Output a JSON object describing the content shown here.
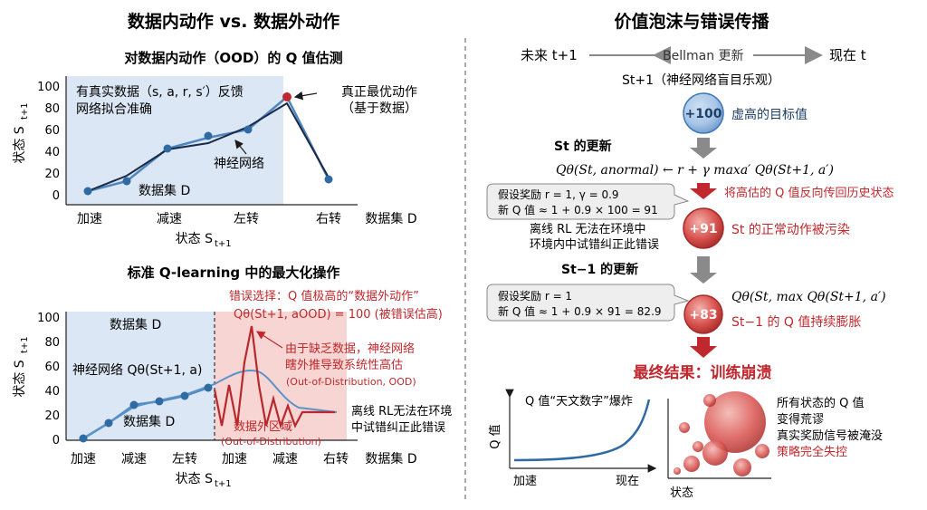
{
  "left": {
    "title": "数据内动作 vs. 数据外动作",
    "top": {
      "title": "对数据内动作（OOD）的 Q 值估测",
      "feedback_line1": "有真实数据（s, a, r, s′）反馈",
      "feedback_line2": "网络拟合准确",
      "best_action_line1": "真正最优动作",
      "best_action_line2": "（基于数据）",
      "nn_label": "神经网络",
      "dataset_label": "数据集 D",
      "yticks": [
        "100",
        "80",
        "60",
        "40",
        "20",
        "0"
      ],
      "xticks": [
        "加速",
        "减速",
        "左转",
        "右转"
      ],
      "ylabel": "状态 S",
      "ylabel_sub": "t+1",
      "xlabel": "状态 S",
      "xlabel_sub": "t+1",
      "xaxis_right": "数据集 D"
    },
    "bottom": {
      "title": "标准 Q-learning 中的最大化操作",
      "error_line1": "错误选择：Q 值极高的“数据外动作”",
      "error_line2": "Qθ(St+1, aOOD) = 100 (被错误估高)",
      "extrap_line1": "由于缺乏数据，神经网络",
      "extrap_line2": "瞎外推导致系统性高估",
      "extrap_line3": "(Out-of-Distribution, OOD)",
      "dataset_top": "数据集 D",
      "nn_label": "神经网络 Qθ(St+1, a)",
      "dataset_bottom": "数据集 D",
      "ood_region_line1": "数据外区域",
      "ood_region_line2": "(Out-of-Distribution)",
      "offline_line1": "离线 RL无法在环境",
      "offline_line2": "中试错纠正此错误",
      "yticks": [
        "100",
        "80",
        "60",
        "40",
        "20",
        "0"
      ],
      "xticks": [
        "加速",
        "减速",
        "左转",
        "加速",
        "减速",
        "右转"
      ],
      "ylabel": "状态 S",
      "ylabel_sub": "t+1",
      "xlabel": "状态 S",
      "xlabel_sub": "t+1",
      "xaxis_right": "数据集 D"
    }
  },
  "right": {
    "title": "价值泡沫与错误传播",
    "future": "未来 t+1",
    "bellman": "Bellman 更新",
    "now": "现在 t",
    "s_next": "St+1（神经网络盲目乐观）",
    "bubble1": "+100",
    "bubble1_note": "虚高的目标值",
    "st_update": "St 的更新",
    "formula1": "Qθ(St, anormal) ← r + γ maxa′ Qθ(St+1, a′)",
    "box1_line1": "假设奖励 r = 1, γ = 0.9",
    "box1_line2": "新 Q 值 ≈ 1 + 0.9 × 100 = 91",
    "backprop_note": "将高估的 Q 值反向传回历史状态",
    "offline_line1": "离线 RL 无法在环境中",
    "offline_line2": "环境内中试错纠正此错误",
    "bubble2": "+91",
    "bubble2_note": "St 的正常动作被污染",
    "st1_update": "St−1 的更新",
    "box2_line1": "假设奖励 r = 1",
    "box2_line2": "新 Q 值 ≈ 1 + 0.9 × 91 = 82.9",
    "formula2": "Qθ(St, max Qθ(St+1, a′)",
    "bubble3": "+83",
    "bubble3_note": "St−1 的 Q 值持续膨胀",
    "final": "最终结果：训练崩溃",
    "explode_title": "Q 值“天文数字”爆炸",
    "explode_ylabel": "Q 值",
    "explode_x_left": "加速",
    "explode_x_right": "现在",
    "state_label": "状态",
    "conclusion_line1": "所有状态的 Q 值",
    "conclusion_line2": "变得荒谬",
    "conclusion_line3": "真实奖励信号被淹没",
    "conclusion_line4": "策略完全失控"
  },
  "colors": {
    "in_data_bg": "#dbe7f4",
    "ood_bg": "#f6d5d2",
    "accent_red": "#c0282d",
    "data_blue": "#2f6aa3",
    "nn_line": "#1b2a44",
    "bubble_red": "#d44a4a",
    "bubble_blue": "#3d78b8",
    "arrow_gray": "#8a8a8a"
  },
  "icons": [
    "left-right-arrow-icon",
    "down-arrow-icon",
    "red-down-arrow-icon"
  ]
}
